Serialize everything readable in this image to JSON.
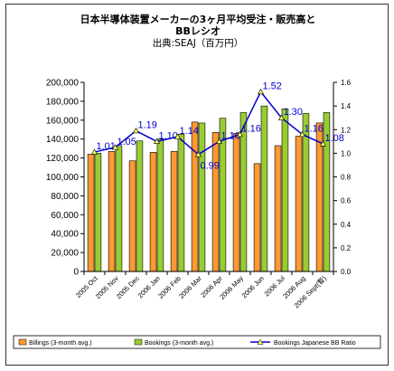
{
  "title_line1": "日本半導体装置メーカーの3ヶ月平均受注・販売高と",
  "title_line2": "BBレシオ",
  "source": "出典:SEAJ（百万円）",
  "chart_data": {
    "type": "bar",
    "categories": [
      "2005 Oct",
      "2005 Nov",
      "2005 Dec",
      "2006 Jan",
      "2006 Feb",
      "2006 Mar",
      "2006 Apr",
      "2006 May",
      "2006 Jun",
      "2006 Jul",
      "2006 Aug",
      "2006 Sept(暫)"
    ],
    "series": [
      {
        "name": "Billings (3-month avg.)",
        "type": "bar",
        "axis": "left",
        "color": "#ff9933",
        "values": [
          124000,
          127000,
          117000,
          126000,
          127000,
          158000,
          147000,
          146000,
          114000,
          133000,
          143000,
          157000
        ]
      },
      {
        "name": "Bookings (3-month avg.)",
        "type": "bar",
        "axis": "left",
        "color": "#99cc33",
        "values": [
          125000,
          133000,
          138000,
          140000,
          145000,
          157000,
          162000,
          168000,
          175000,
          172000,
          167000,
          168000
        ]
      },
      {
        "name": "Bookings Japanese BB Ratio",
        "type": "line",
        "axis": "right",
        "color": "#0000cc",
        "values": [
          1.01,
          1.05,
          1.19,
          1.1,
          1.14,
          0.99,
          1.1,
          1.16,
          1.52,
          1.3,
          1.16,
          1.08
        ]
      }
    ],
    "data_labels": [
      "1.01",
      "1.05",
      "1.19",
      "1.10",
      "1.14",
      "0.99",
      "1.10",
      "1.16",
      "1.52",
      "1.30",
      "1.16",
      "1.08"
    ],
    "ylim": [
      0,
      200000
    ],
    "yticks": [
      "0",
      "20,000",
      "40,000",
      "60,000",
      "80,000",
      "100,000",
      "120,000",
      "140,000",
      "160,000",
      "180,000",
      "200,000"
    ],
    "y2lim": [
      0,
      1.6
    ],
    "y2ticks": [
      "0.0",
      "0.2",
      "0.4",
      "0.6",
      "0.8",
      "1.0",
      "1.2",
      "1.4",
      "1.6"
    ],
    "legend_position": "bottom",
    "grid": false
  }
}
